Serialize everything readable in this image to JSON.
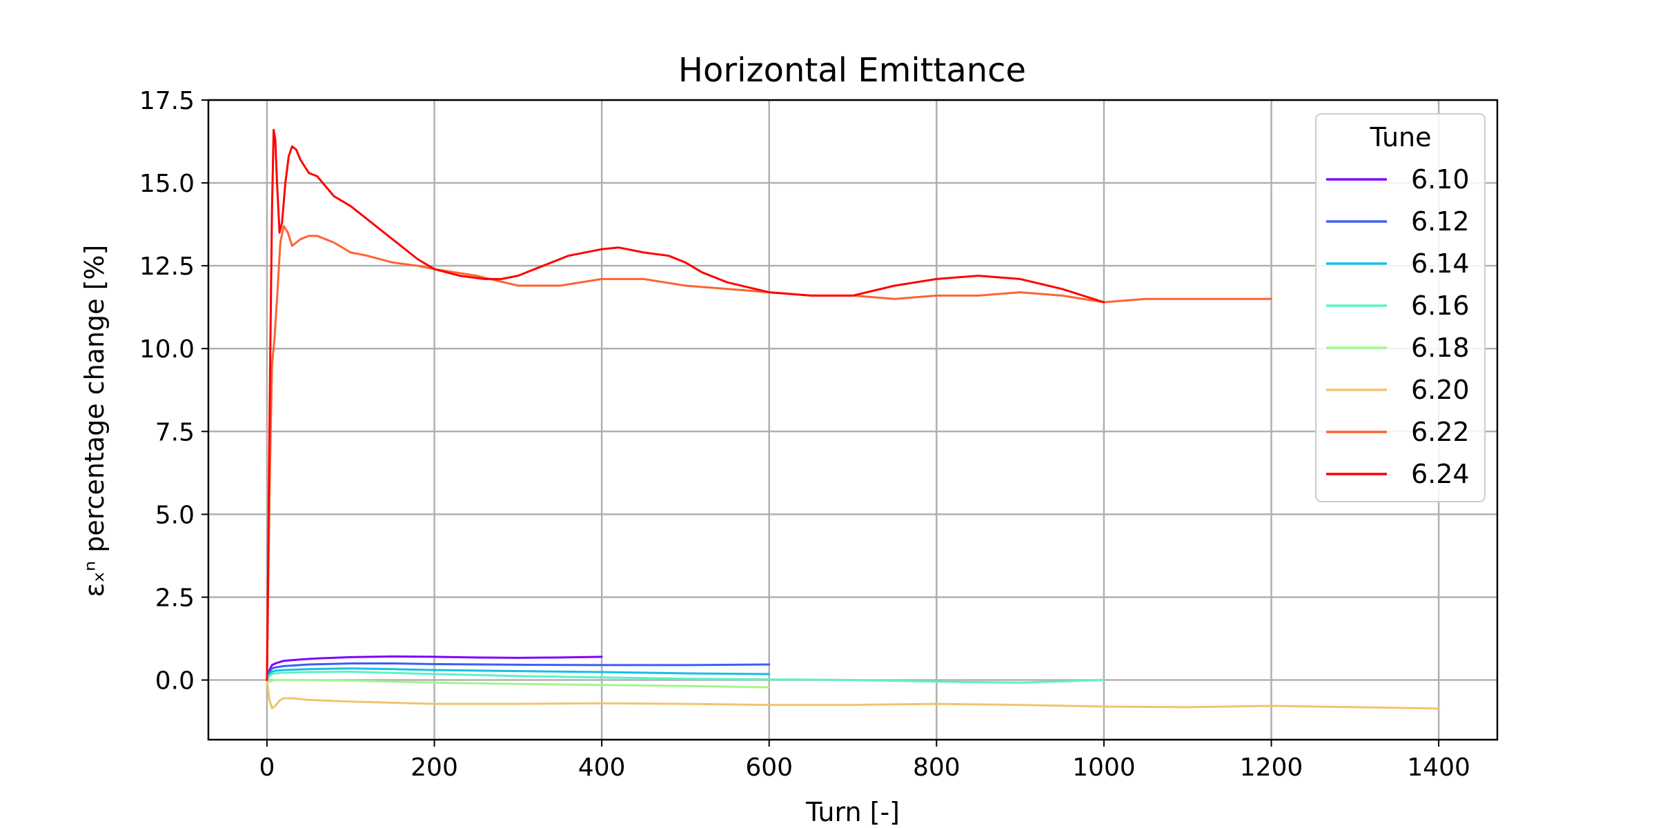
{
  "chart_data": {
    "type": "line",
    "title": "Horizontal Emittance",
    "xlabel": "Turn [-]",
    "ylabel": "εₓⁿ percentage change [%]",
    "xlim": [
      -70,
      1470
    ],
    "ylim": [
      -1.8,
      17.5
    ],
    "xticks": [
      0,
      200,
      400,
      600,
      800,
      1000,
      1200,
      1400
    ],
    "yticks": [
      0.0,
      2.5,
      5.0,
      7.5,
      10.0,
      12.5,
      15.0,
      17.5
    ],
    "xtick_labels": [
      "0",
      "200",
      "400",
      "600",
      "800",
      "1000",
      "1200",
      "1400"
    ],
    "ytick_labels": [
      "0.0",
      "2.5",
      "5.0",
      "7.5",
      "10.0",
      "12.5",
      "15.0",
      "17.5"
    ],
    "grid": true,
    "legend": {
      "title": "Tune",
      "position": "top-right"
    },
    "series": [
      {
        "name": "6.10",
        "color": "#7f00ff",
        "x": [
          0,
          3,
          6,
          10,
          20,
          40,
          60,
          100,
          150,
          200,
          250,
          300,
          350,
          400
        ],
        "y": [
          0.0,
          0.3,
          0.45,
          0.5,
          0.58,
          0.62,
          0.65,
          0.69,
          0.71,
          0.7,
          0.68,
          0.67,
          0.68,
          0.7
        ]
      },
      {
        "name": "6.12",
        "color": "#3c5ef7",
        "x": [
          0,
          3,
          6,
          10,
          20,
          50,
          100,
          150,
          200,
          300,
          400,
          500,
          600
        ],
        "y": [
          0.0,
          0.25,
          0.35,
          0.38,
          0.42,
          0.47,
          0.5,
          0.5,
          0.48,
          0.46,
          0.45,
          0.45,
          0.47
        ]
      },
      {
        "name": "6.14",
        "color": "#18bfe3",
        "x": [
          0,
          3,
          6,
          10,
          20,
          50,
          100,
          150,
          200,
          300,
          400,
          500,
          600
        ],
        "y": [
          0.0,
          0.18,
          0.25,
          0.28,
          0.3,
          0.33,
          0.35,
          0.33,
          0.3,
          0.27,
          0.24,
          0.2,
          0.18
        ]
      },
      {
        "name": "6.16",
        "color": "#5bf2c4",
        "x": [
          0,
          3,
          6,
          10,
          20,
          50,
          100,
          200,
          300,
          400,
          500,
          600,
          700,
          800,
          900,
          1000
        ],
        "y": [
          0.0,
          0.12,
          0.18,
          0.2,
          0.22,
          0.24,
          0.25,
          0.18,
          0.12,
          0.08,
          0.04,
          0.02,
          0.0,
          -0.05,
          -0.08,
          0.0
        ]
      },
      {
        "name": "6.18",
        "color": "#a4f58e",
        "x": [
          0,
          3,
          6,
          10,
          20,
          50,
          100,
          200,
          300,
          400,
          500,
          600
        ],
        "y": [
          0.0,
          -0.05,
          -0.02,
          0.0,
          0.0,
          0.0,
          -0.02,
          -0.08,
          -0.12,
          -0.15,
          -0.18,
          -0.22
        ]
      },
      {
        "name": "6.20",
        "color": "#f0c46e",
        "x": [
          0,
          3,
          6,
          10,
          15,
          20,
          30,
          50,
          100,
          200,
          300,
          400,
          500,
          600,
          700,
          800,
          900,
          1000,
          1100,
          1200,
          1300,
          1400
        ],
        "y": [
          0.0,
          -0.6,
          -0.85,
          -0.78,
          -0.62,
          -0.55,
          -0.55,
          -0.6,
          -0.65,
          -0.72,
          -0.72,
          -0.7,
          -0.72,
          -0.75,
          -0.75,
          -0.72,
          -0.75,
          -0.8,
          -0.82,
          -0.78,
          -0.82,
          -0.86
        ]
      },
      {
        "name": "6.22",
        "color": "#ff6232",
        "x": [
          0,
          3,
          6,
          9,
          12,
          16,
          20,
          25,
          30,
          35,
          40,
          50,
          60,
          70,
          80,
          100,
          120,
          150,
          180,
          200,
          250,
          300,
          350,
          400,
          450,
          500,
          550,
          600,
          650,
          700,
          750,
          800,
          850,
          900,
          950,
          1000,
          1050,
          1100,
          1150,
          1200
        ],
        "y": [
          0.0,
          5.5,
          9.5,
          10.3,
          11.5,
          13.2,
          13.7,
          13.5,
          13.1,
          13.2,
          13.3,
          13.4,
          13.4,
          13.3,
          13.2,
          12.9,
          12.8,
          12.6,
          12.5,
          12.4,
          12.2,
          11.9,
          11.9,
          12.1,
          12.1,
          11.9,
          11.8,
          11.7,
          11.6,
          11.6,
          11.5,
          11.6,
          11.6,
          11.7,
          11.6,
          11.4,
          11.5,
          11.5,
          11.5,
          11.5
        ]
      },
      {
        "name": "6.24",
        "color": "#ff0000",
        "x": [
          0,
          2,
          4,
          6,
          8,
          10,
          12,
          15,
          18,
          22,
          26,
          30,
          35,
          40,
          50,
          60,
          70,
          80,
          100,
          120,
          140,
          160,
          180,
          200,
          230,
          260,
          280,
          300,
          330,
          360,
          400,
          420,
          450,
          480,
          500,
          520,
          550,
          600,
          650,
          700,
          750,
          800,
          850,
          900,
          950,
          1000
        ],
        "y": [
          0.0,
          5.0,
          10.0,
          14.2,
          16.6,
          16.3,
          15.0,
          13.5,
          13.8,
          15.0,
          15.8,
          16.1,
          16.0,
          15.7,
          15.3,
          15.2,
          14.9,
          14.6,
          14.3,
          13.9,
          13.5,
          13.1,
          12.7,
          12.4,
          12.2,
          12.1,
          12.1,
          12.2,
          12.5,
          12.8,
          13.0,
          13.05,
          12.9,
          12.8,
          12.6,
          12.3,
          12.0,
          11.7,
          11.6,
          11.6,
          11.9,
          12.1,
          12.2,
          12.1,
          11.8,
          11.4
        ]
      }
    ]
  }
}
